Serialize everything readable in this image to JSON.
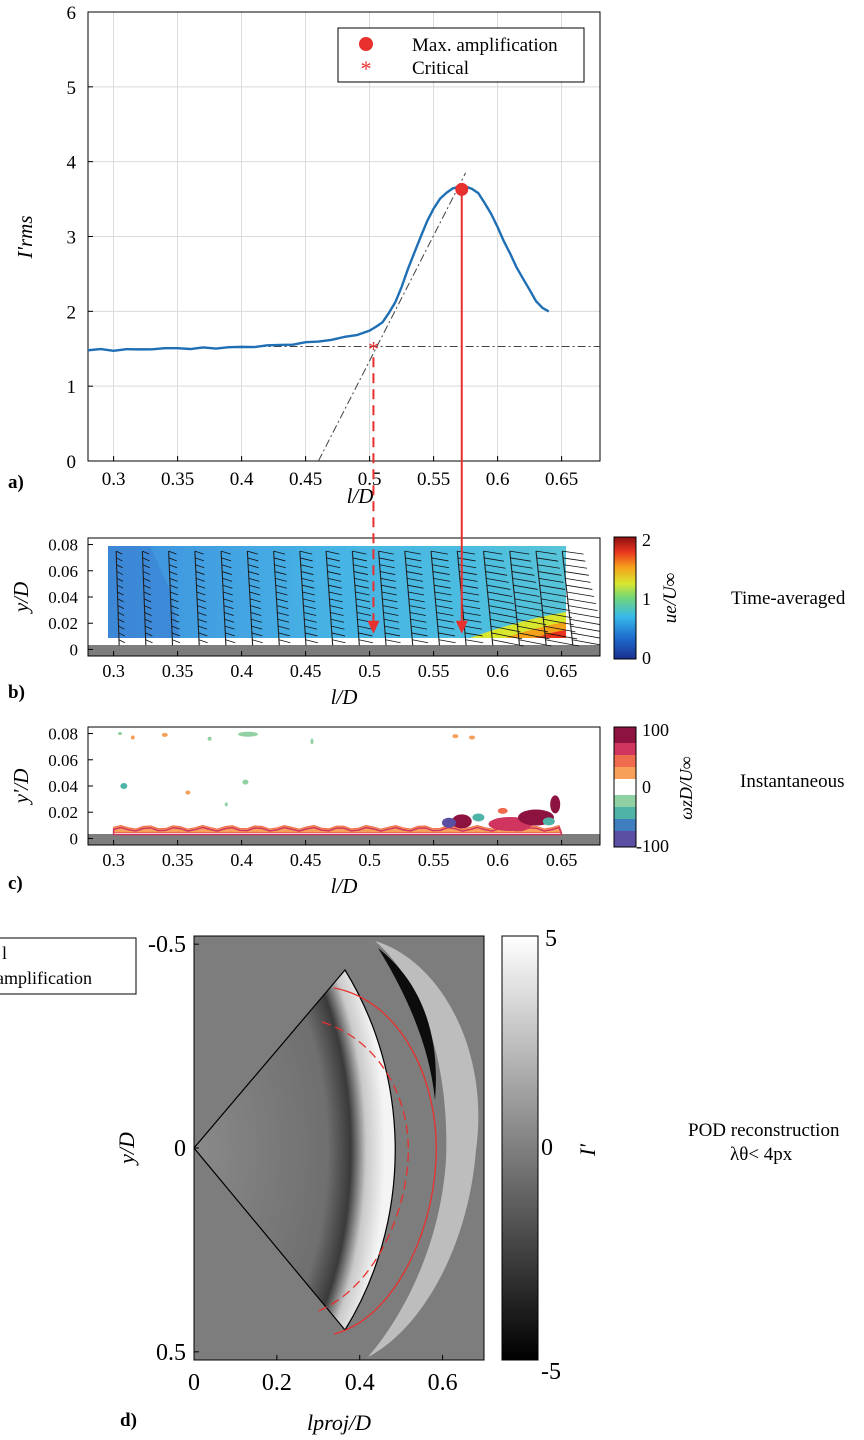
{
  "panel_labels": [
    "a)",
    "b)",
    "c)",
    "d)"
  ],
  "side_labels": {
    "b": "Time-averaged",
    "c": "Instantaneous",
    "d_line1": "POD reconstruction",
    "d_line2": "λθ< 4px"
  },
  "stray_legend": {
    "line1": "l",
    "line2": "amplification"
  },
  "colors": {
    "series": "#1f6fb5",
    "markers": "#e8302e",
    "grid": "#d9d9d9",
    "gray_bg": "#7d7d7d"
  },
  "chart_data": [
    {
      "id": "a",
      "type": "line",
      "title": "",
      "xlabel": "l/D",
      "ylabel": "I'rms",
      "xlim": [
        0.28,
        0.68
      ],
      "ylim": [
        0,
        6
      ],
      "xticks": [
        0.3,
        0.35,
        0.4,
        0.45,
        0.5,
        0.55,
        0.6,
        0.65
      ],
      "yticks": [
        0,
        1,
        2,
        3,
        4,
        5,
        6
      ],
      "grid": true,
      "legend": {
        "placement": "top-right",
        "entries": [
          "Max. amplification",
          "Critical"
        ]
      },
      "series": [
        {
          "name": "",
          "x": [
            0.28,
            0.29,
            0.3,
            0.31,
            0.32,
            0.33,
            0.34,
            0.35,
            0.36,
            0.37,
            0.38,
            0.39,
            0.4,
            0.41,
            0.42,
            0.43,
            0.44,
            0.45,
            0.46,
            0.47,
            0.48,
            0.49,
            0.5,
            0.505,
            0.51,
            0.515,
            0.52,
            0.525,
            0.53,
            0.535,
            0.54,
            0.545,
            0.55,
            0.555,
            0.56,
            0.565,
            0.57,
            0.575,
            0.58,
            0.585,
            0.59,
            0.595,
            0.6,
            0.605,
            0.61,
            0.615,
            0.62,
            0.625,
            0.63,
            0.635,
            0.64
          ],
          "y": [
            1.48,
            1.49,
            1.48,
            1.49,
            1.49,
            1.5,
            1.5,
            1.51,
            1.5,
            1.51,
            1.51,
            1.52,
            1.52,
            1.53,
            1.54,
            1.55,
            1.56,
            1.58,
            1.6,
            1.62,
            1.65,
            1.69,
            1.74,
            1.79,
            1.86,
            1.97,
            2.12,
            2.33,
            2.56,
            2.79,
            3.0,
            3.2,
            3.38,
            3.5,
            3.58,
            3.65,
            3.66,
            3.67,
            3.64,
            3.57,
            3.45,
            3.3,
            3.12,
            2.94,
            2.76,
            2.58,
            2.44,
            2.28,
            2.14,
            2.05,
            1.99
          ]
        }
      ],
      "critical_point": {
        "x": 0.503,
        "y": 1.52
      },
      "max_point": {
        "x": 0.572,
        "y": 3.63
      },
      "baseline_y": 1.53,
      "tangent": {
        "x1": 0.46,
        "y1": 0,
        "x2": 0.575,
        "y2": 3.85
      }
    },
    {
      "id": "b",
      "type": "heatmap",
      "xlabel": "l/D",
      "ylabel": "y/D",
      "xlim": [
        0.28,
        0.68
      ],
      "ylim": [
        -0.005,
        0.085
      ],
      "xticks": [
        0.3,
        0.35,
        0.4,
        0.45,
        0.5,
        0.55,
        0.6,
        0.65
      ],
      "yticks": [
        0,
        0.02,
        0.04,
        0.06,
        0.08
      ],
      "colorbar": {
        "label": "ue/U∞",
        "ticks": [
          0,
          1,
          2
        ],
        "range": [
          0,
          2
        ]
      }
    },
    {
      "id": "c",
      "type": "heatmap",
      "xlabel": "l/D",
      "ylabel": "y'/D",
      "xlim": [
        0.28,
        0.68
      ],
      "ylim": [
        -0.005,
        0.085
      ],
      "xticks": [
        0.3,
        0.35,
        0.4,
        0.45,
        0.5,
        0.55,
        0.6,
        0.65
      ],
      "yticks": [
        0,
        0.02,
        0.04,
        0.06,
        0.08
      ],
      "colorbar": {
        "label": "ωzD/U∞",
        "ticks": [
          100,
          0,
          -100
        ],
        "range": [
          -100,
          100
        ]
      }
    },
    {
      "id": "d",
      "type": "heatmap",
      "xlabel": "lproj/D",
      "ylabel": "y/D",
      "xlim": [
        0,
        0.7
      ],
      "ylim": [
        -0.52,
        0.52
      ],
      "xticks": [
        0,
        0.2,
        0.4,
        0.6
      ],
      "yticks": [
        -0.5,
        0,
        0.5
      ],
      "colorbar": {
        "label": "I'",
        "ticks": [
          5,
          0,
          -5
        ],
        "range": [
          -5,
          5
        ]
      }
    }
  ]
}
